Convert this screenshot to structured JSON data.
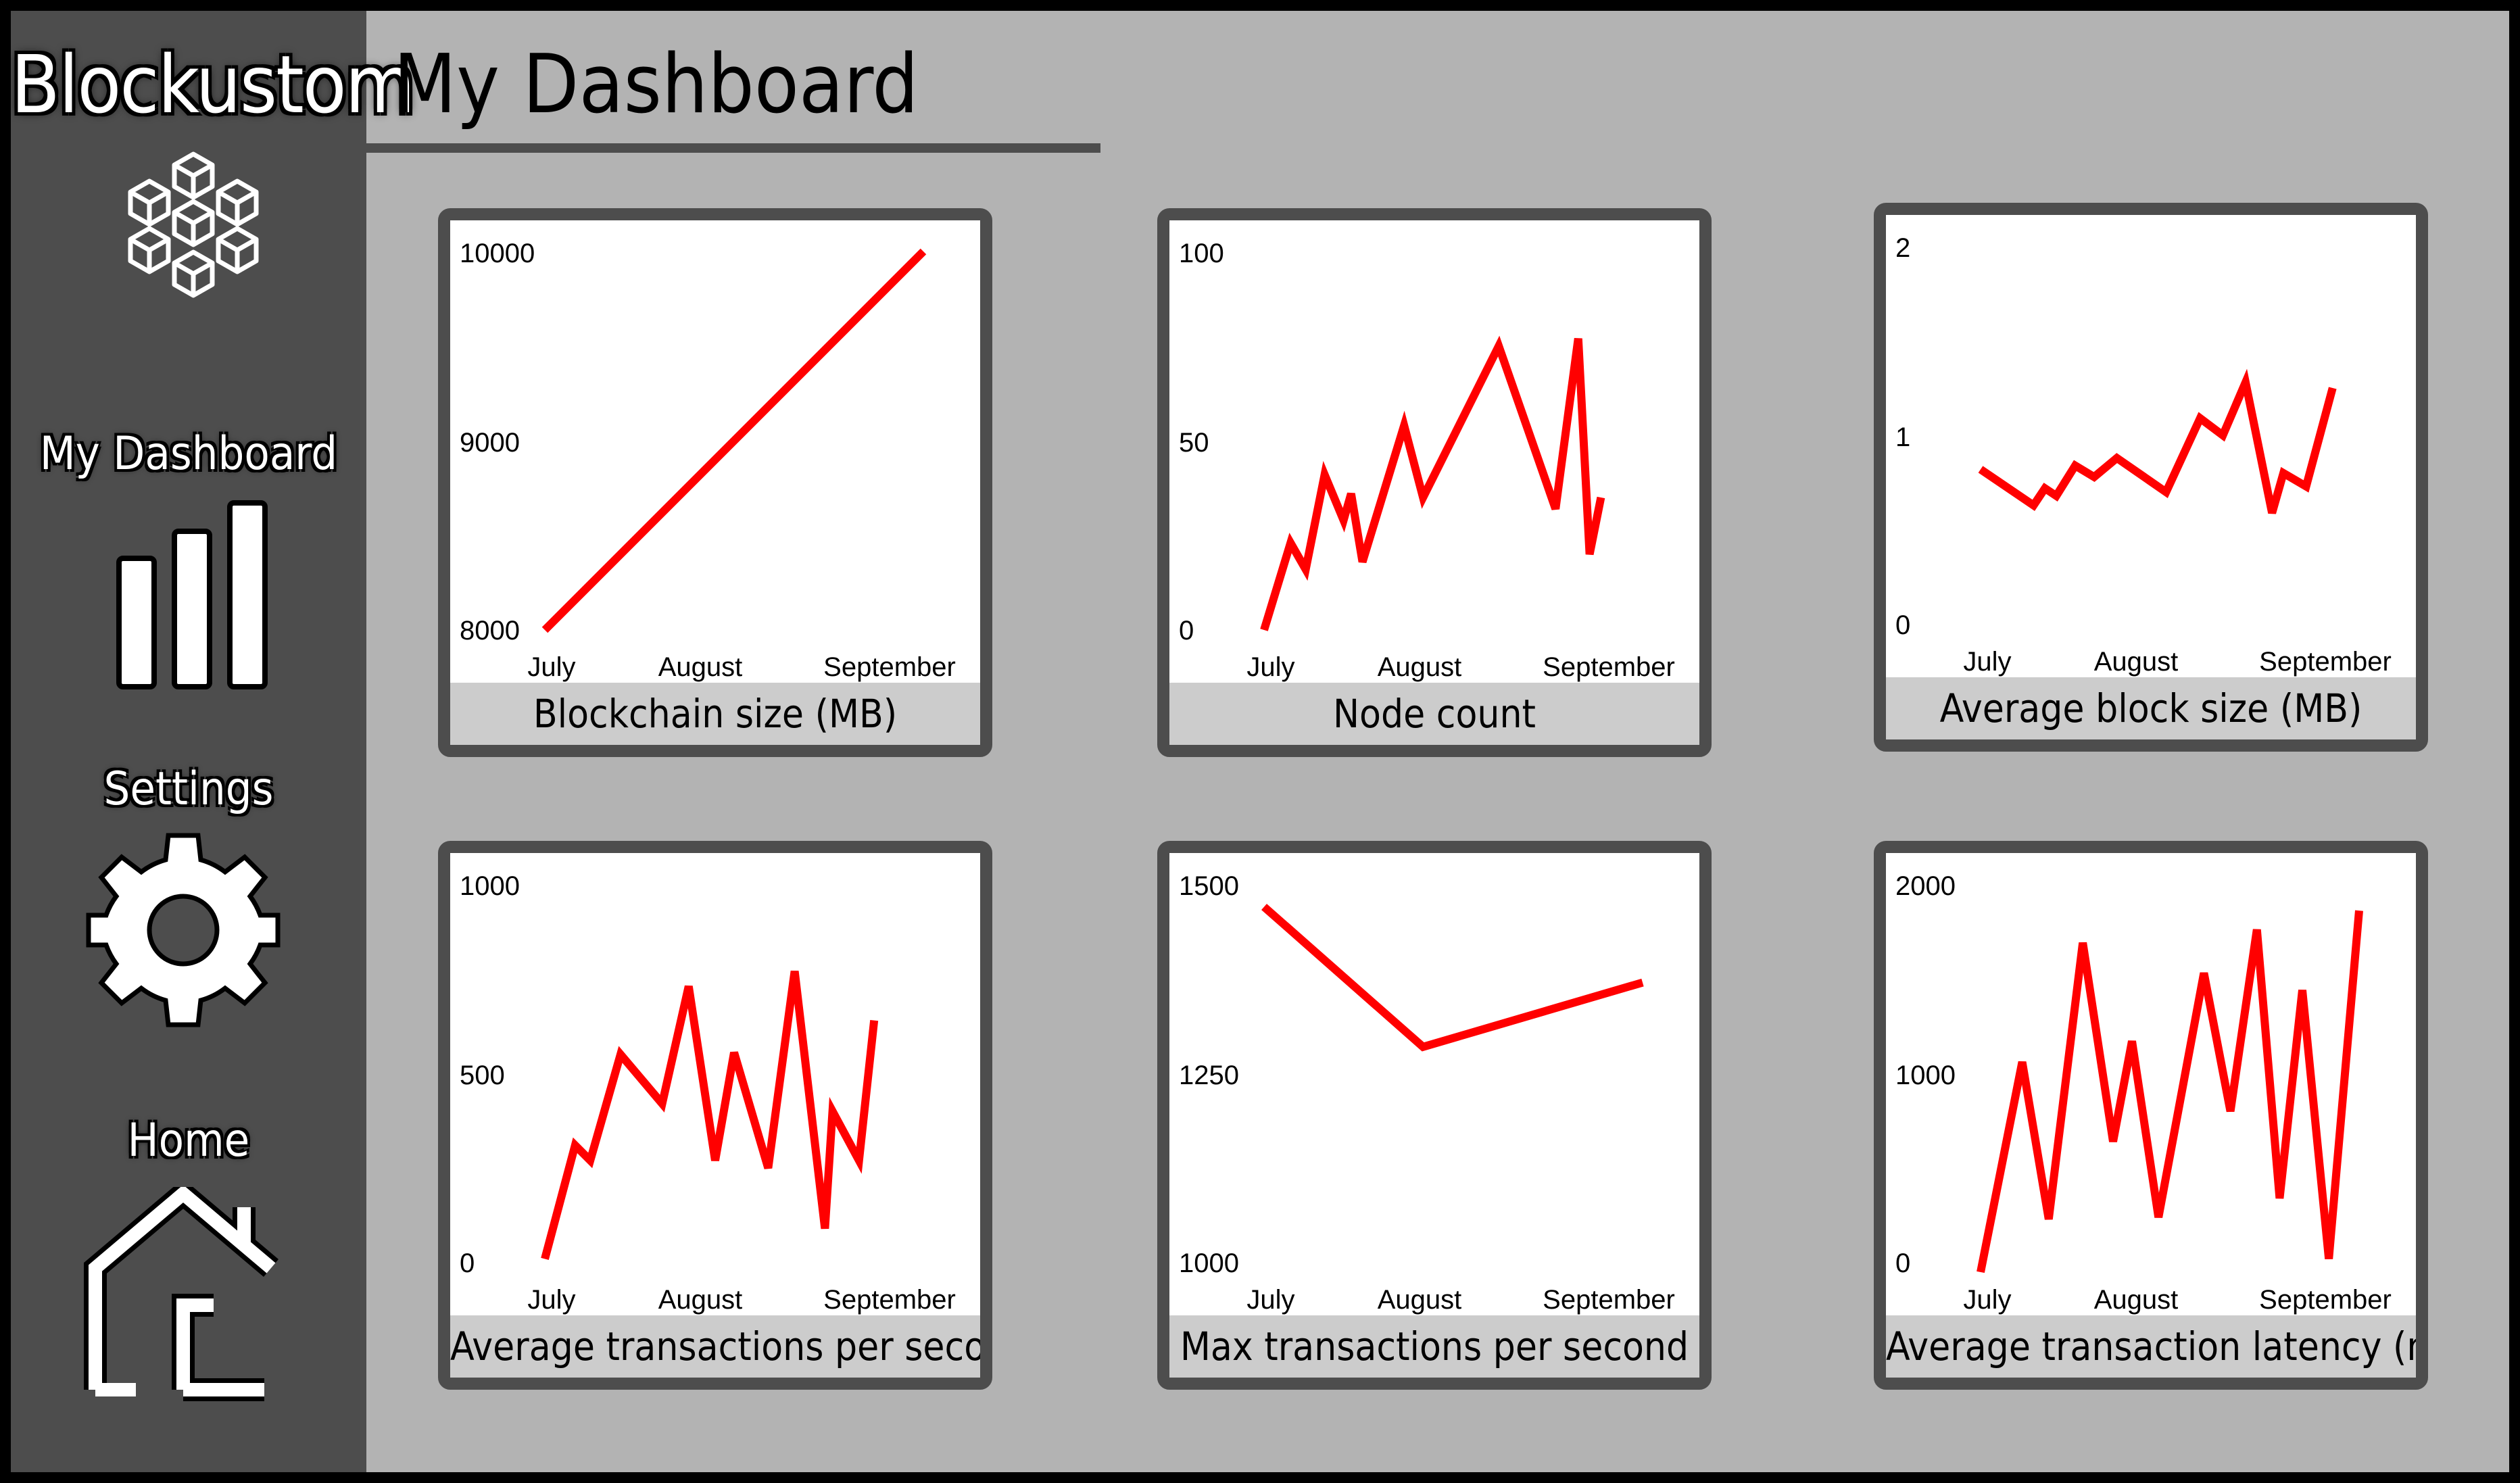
{
  "app": {
    "brand": "Blockustom"
  },
  "header": {
    "title": "My Dashboard"
  },
  "sidebar": {
    "items": [
      {
        "label": "My Dashboard",
        "icon": "bar-chart-icon"
      },
      {
        "label": "Settings",
        "icon": "gear-icon"
      },
      {
        "label": "Home",
        "icon": "house-icon"
      }
    ]
  },
  "colors": {
    "sidebar": "#4d4d4d",
    "background": "#b3b3b3",
    "line": "#ff0000",
    "caption": "#cccccc"
  },
  "chart_data": [
    {
      "type": "line",
      "title": "Blockchain size (MB)",
      "x_ticks": [
        "July",
        "August",
        "September"
      ],
      "y_ticks": [
        "8000",
        "9000",
        "10000"
      ],
      "ylim": [
        8000,
        10000
      ],
      "grid": false,
      "points": [
        [
          0.0,
          8000
        ],
        [
          1.0,
          10000
        ]
      ]
    },
    {
      "type": "line",
      "title": "Node count",
      "x_ticks": [
        "July",
        "August",
        "September"
      ],
      "y_ticks": [
        "0",
        "50",
        "100"
      ],
      "ylim": [
        0,
        100
      ],
      "grid": false,
      "points": [
        [
          0.0,
          0
        ],
        [
          0.07,
          23
        ],
        [
          0.11,
          16
        ],
        [
          0.16,
          41
        ],
        [
          0.21,
          29
        ],
        [
          0.23,
          36
        ],
        [
          0.26,
          18
        ],
        [
          0.37,
          54
        ],
        [
          0.42,
          35
        ],
        [
          0.62,
          75
        ],
        [
          0.77,
          32
        ],
        [
          0.83,
          77
        ],
        [
          0.86,
          20
        ],
        [
          0.89,
          35
        ]
      ]
    },
    {
      "type": "line",
      "title": "Average block size (MB)",
      "x_ticks": [
        "July",
        "August",
        "September"
      ],
      "y_ticks": [
        "0",
        "1",
        "2"
      ],
      "ylim": [
        0,
        2
      ],
      "grid": false,
      "points": [
        [
          0.0,
          0.82
        ],
        [
          0.14,
          0.63
        ],
        [
          0.17,
          0.72
        ],
        [
          0.2,
          0.68
        ],
        [
          0.25,
          0.84
        ],
        [
          0.3,
          0.78
        ],
        [
          0.36,
          0.88
        ],
        [
          0.49,
          0.7
        ],
        [
          0.58,
          1.09
        ],
        [
          0.64,
          1.0
        ],
        [
          0.7,
          1.28
        ],
        [
          0.77,
          0.59
        ],
        [
          0.8,
          0.8
        ],
        [
          0.86,
          0.73
        ],
        [
          0.93,
          1.25
        ]
      ]
    },
    {
      "type": "line",
      "title": "Average transactions per second",
      "x_ticks": [
        "July",
        "August",
        "September"
      ],
      "y_ticks": [
        "0",
        "500",
        "1000"
      ],
      "ylim": [
        0,
        1000
      ],
      "grid": false,
      "points": [
        [
          0.0,
          10
        ],
        [
          0.08,
          310
        ],
        [
          0.12,
          270
        ],
        [
          0.2,
          550
        ],
        [
          0.31,
          420
        ],
        [
          0.38,
          730
        ],
        [
          0.45,
          270
        ],
        [
          0.5,
          555
        ],
        [
          0.59,
          250
        ],
        [
          0.66,
          770
        ],
        [
          0.74,
          90
        ],
        [
          0.76,
          400
        ],
        [
          0.83,
          270
        ],
        [
          0.87,
          640
        ]
      ]
    },
    {
      "type": "line",
      "title": "Max transactions per second",
      "x_ticks": [
        "July",
        "August",
        "September"
      ],
      "y_ticks": [
        "1000",
        "1250",
        "1500"
      ],
      "ylim": [
        1000,
        1500
      ],
      "grid": false,
      "points": [
        [
          0.0,
          1470
        ],
        [
          0.42,
          1285
        ],
        [
          1.0,
          1370
        ]
      ]
    },
    {
      "type": "line",
      "title": "Average transaction latency (ms)",
      "x_ticks": [
        "July",
        "August",
        "September"
      ],
      "y_ticks": [
        "0",
        "1000",
        "2000"
      ],
      "ylim": [
        0,
        2000
      ],
      "grid": false,
      "points": [
        [
          0.0,
          -50
        ],
        [
          0.11,
          1060
        ],
        [
          0.18,
          230
        ],
        [
          0.27,
          1690
        ],
        [
          0.35,
          640
        ],
        [
          0.4,
          1170
        ],
        [
          0.47,
          240
        ],
        [
          0.59,
          1530
        ],
        [
          0.66,
          800
        ],
        [
          0.73,
          1760
        ],
        [
          0.79,
          340
        ],
        [
          0.85,
          1440
        ],
        [
          0.92,
          20
        ],
        [
          1.0,
          1860
        ]
      ]
    }
  ]
}
